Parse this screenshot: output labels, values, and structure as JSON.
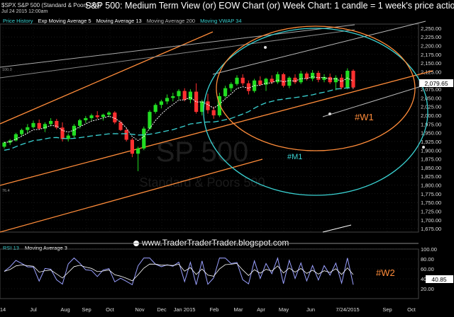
{
  "header": {
    "symbol": "$SPX S&P 500 (Standard & Poors 500)",
    "date": "Jul 24 2015 12:00am",
    "title": "S&P 500: Medium Term View (or) EOW Chart (or) Week Chart: 1 candle = 1 week's price action"
  },
  "legend": [
    {
      "label": "Price History",
      "color": "#3ad3d3"
    },
    {
      "label": "Exp Moving Average 5",
      "color": "#ffffff"
    },
    {
      "label": "Moving Average 13",
      "color": "#ffffff"
    },
    {
      "label": "Moving Average 200",
      "color": "#bbbbbb"
    },
    {
      "label": "Moving VWAP 34",
      "color": "#3ad3d3"
    }
  ],
  "watermark": {
    "line1": "SP 500",
    "line2": "Standard & Poors 500"
  },
  "annotations": {
    "w1": "#W1",
    "m1": "#M1",
    "w2": "#W2"
  },
  "website": "www.TraderTraderTrader.blogspot.com",
  "rsi_panel": {
    "label1": "RSI 13",
    "label2": "Moving Average 3",
    "current": "40.85"
  },
  "small_labels": {
    "rsi_high": "100.0",
    "rsi_low": "76.4"
  },
  "colors": {
    "up": "#22dd22",
    "down": "#ff3030",
    "ema": "#ffffff",
    "vwap": "#3ad3d3",
    "channel": "#ff8c3a",
    "ma200": "#bbbbbb",
    "last_price_bg": "#ffffff"
  },
  "chart_data": {
    "type": "candlestick",
    "title": "S&P 500: Medium Term View (or) EOW Chart (or) Week Chart: 1 candle = 1 week's price action",
    "x_tick_labels": [
      "14",
      "Jul",
      "Aug",
      "Sep",
      "Oct",
      "Nov",
      "Dec",
      "Jan 2015",
      "Feb",
      "Mar",
      "Apr",
      "May",
      "Jun",
      "7/24/2015",
      "Sep",
      "Oct"
    ],
    "y_tick_labels": [
      "2,250.00",
      "2,225.00",
      "2,200.00",
      "2,175.00",
      "2,150.00",
      "2,125.00",
      "2,100.00",
      "2,075.00",
      "2,050.00",
      "2,025.00",
      "2,000.00",
      "1,975.00",
      "1,950.00",
      "1,925.00",
      "1,900.00",
      "1,875.00",
      "1,850.00",
      "1,825.00",
      "1,800.00",
      "1,775.00",
      "1,750.00",
      "1,725.00",
      "1,700.00",
      "1,675.00"
    ],
    "ylim": [
      1665,
      2262
    ],
    "last_price": "2,079.65",
    "candles": [
      [
        1910,
        1925,
        1905,
        1922
      ],
      [
        1922,
        1932,
        1915,
        1928
      ],
      [
        1928,
        1950,
        1925,
        1946
      ],
      [
        1946,
        1962,
        1940,
        1958
      ],
      [
        1958,
        1975,
        1950,
        1966
      ],
      [
        1966,
        1985,
        1962,
        1978
      ],
      [
        1978,
        1988,
        1958,
        1962
      ],
      [
        1962,
        1980,
        1952,
        1975
      ],
      [
        1975,
        1992,
        1968,
        1984
      ],
      [
        1984,
        1990,
        1960,
        1965
      ],
      [
        1965,
        1980,
        1925,
        1932
      ],
      [
        1932,
        1948,
        1925,
        1942
      ],
      [
        1942,
        1975,
        1935,
        1970
      ],
      [
        1970,
        1990,
        1962,
        1986
      ],
      [
        1986,
        1998,
        1978,
        1992
      ],
      [
        1992,
        2005,
        1985,
        2000
      ],
      [
        2000,
        2012,
        1990,
        1995
      ],
      [
        1995,
        2005,
        1985,
        2002
      ],
      [
        2002,
        2012,
        1995,
        2008
      ],
      [
        2008,
        2012,
        1975,
        1980
      ],
      [
        1980,
        1985,
        1955,
        1958
      ],
      [
        1958,
        1962,
        1925,
        1930
      ],
      [
        1930,
        1935,
        1880,
        1890
      ],
      [
        1890,
        1910,
        1840,
        1905
      ],
      [
        1905,
        1968,
        1900,
        1962
      ],
      [
        1962,
        2015,
        1958,
        2010
      ],
      [
        2010,
        2035,
        2005,
        2030
      ],
      [
        2030,
        2045,
        2020,
        2040
      ],
      [
        2040,
        2060,
        2032,
        2050
      ],
      [
        2050,
        2065,
        2040,
        2055
      ],
      [
        2055,
        2075,
        2045,
        2070
      ],
      [
        2070,
        2078,
        2040,
        2045
      ],
      [
        2045,
        2075,
        2035,
        2068
      ],
      [
        2068,
        2092,
        2005,
        2010
      ],
      [
        2010,
        2045,
        2000,
        2040
      ],
      [
        2040,
        2062,
        2005,
        2015
      ],
      [
        2015,
        2025,
        1990,
        2000
      ],
      [
        2000,
        2065,
        1995,
        2055
      ],
      [
        2055,
        2085,
        2050,
        2078
      ],
      [
        2078,
        2095,
        2068,
        2090
      ],
      [
        2090,
        2115,
        2085,
        2108
      ],
      [
        2108,
        2118,
        2085,
        2092
      ],
      [
        2092,
        2100,
        2060,
        2070
      ],
      [
        2070,
        2105,
        2065,
        2100
      ],
      [
        2100,
        2112,
        2085,
        2088
      ],
      [
        2088,
        2108,
        2070,
        2105
      ],
      [
        2105,
        2115,
        2090,
        2095
      ],
      [
        2095,
        2125,
        2090,
        2118
      ],
      [
        2118,
        2122,
        2080,
        2085
      ],
      [
        2085,
        2112,
        2078,
        2108
      ],
      [
        2108,
        2118,
        2090,
        2095
      ],
      [
        2095,
        2128,
        2090,
        2120
      ],
      [
        2120,
        2125,
        2100,
        2105
      ],
      [
        2105,
        2130,
        2098,
        2122
      ],
      [
        2122,
        2128,
        2095,
        2102
      ],
      [
        2102,
        2118,
        2095,
        2110
      ],
      [
        2110,
        2120,
        2090,
        2095
      ],
      [
        2095,
        2115,
        2072,
        2108
      ],
      [
        2108,
        2118,
        2075,
        2080
      ],
      [
        2080,
        2135,
        2075,
        2128
      ],
      [
        2128,
        2132,
        2075,
        2080
      ]
    ],
    "rsi": {
      "ylim": [
        0,
        100
      ],
      "ticks": [
        "100.00",
        "80.00",
        "60.00",
        "40.00",
        "20.00"
      ],
      "last": 40.85
    }
  }
}
